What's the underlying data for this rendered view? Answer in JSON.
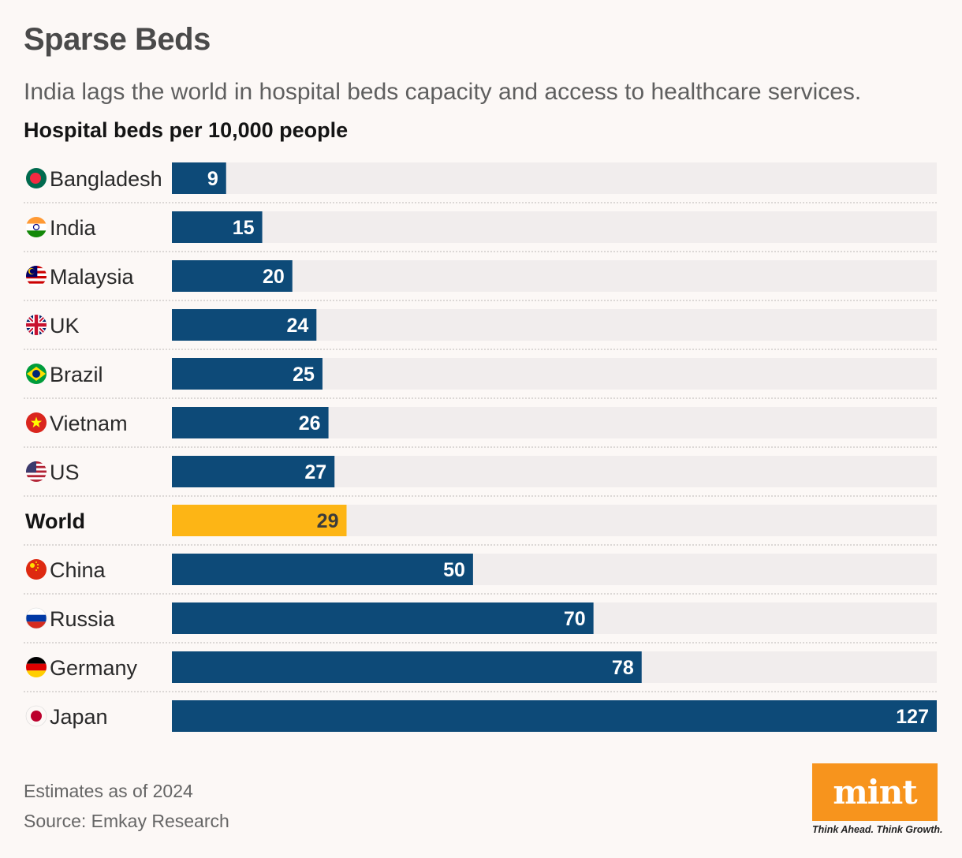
{
  "header": {
    "title": "Sparse Beds",
    "subtitle": "India lags the world in hospital beds capacity and access to healthcare services.",
    "unit_label": "Hospital beds per 10,000 people"
  },
  "footer": {
    "note": "Estimates as of 2024",
    "source": "Source: Emkay Research",
    "logo_text": "mint",
    "tagline": "Think Ahead. Think Growth."
  },
  "colors": {
    "bar": "#0d4a78",
    "highlight": "#fdb515",
    "track": "#f1eded",
    "label_on_bar": "#ffffff",
    "label_on_highlight": "#3b3b3b"
  },
  "chart_data": {
    "type": "bar",
    "orientation": "horizontal",
    "title": "Sparse Beds",
    "subtitle": "India lags the world in hospital beds capacity and access to healthcare services.",
    "ylabel": "Hospital beds per 10,000 people",
    "categories": [
      "Bangladesh",
      "India",
      "Malaysia",
      "UK",
      "Brazil",
      "Vietnam",
      "US",
      "World",
      "China",
      "Russia",
      "Germany",
      "Japan"
    ],
    "values": [
      9,
      15,
      20,
      24,
      25,
      26,
      27,
      29,
      50,
      70,
      78,
      127
    ],
    "highlight": [
      "World"
    ],
    "flags": [
      "bangladesh-flag-icon",
      "india-flag-icon",
      "malaysia-flag-icon",
      "uk-flag-icon",
      "brazil-flag-icon",
      "vietnam-flag-icon",
      "us-flag-icon",
      "",
      "china-flag-icon",
      "russia-flag-icon",
      "germany-flag-icon",
      "japan-flag-icon"
    ],
    "xlim": [
      0,
      127
    ],
    "grid": false,
    "legend": "none"
  }
}
